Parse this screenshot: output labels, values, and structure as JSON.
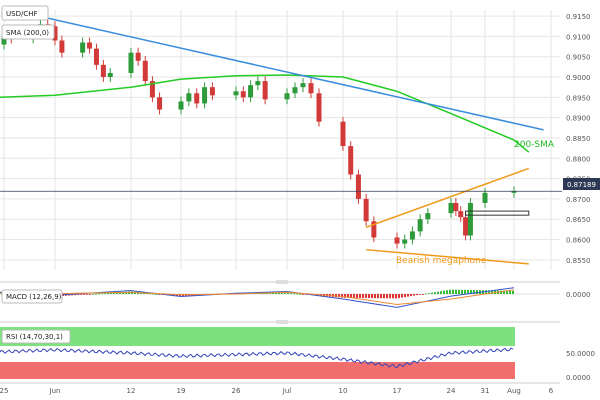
{
  "chart_data": [
    {
      "type": "candlestick",
      "title": "USD/CHF",
      "indicator_label": "SMA (200,0)",
      "yticks": [
        "0.9150",
        "0.9100",
        "0.9050",
        "0.9000",
        "0.8950",
        "0.8900",
        "0.8850",
        "0.8800",
        "0.8750",
        "0.8700",
        "0.8650",
        "0.8600",
        "0.8550"
      ],
      "ylim": [
        0.8525,
        0.9165
      ],
      "xticks": [
        "25",
        "Jun",
        "12",
        "19",
        "26",
        "Jul",
        "10",
        "17",
        "24",
        "31",
        "Aug",
        "6"
      ],
      "current_price": "0.87189",
      "series": [
        {
          "name": "USD/CHF",
          "type": "candlestick",
          "x": [
            "May 24",
            "May 25",
            "May 26",
            "May 29",
            "May 30",
            "May 31",
            "Jun 1",
            "Jun 2",
            "Jun 5",
            "Jun 6",
            "Jun 7",
            "Jun 8",
            "Jun 9",
            "Jun 12",
            "Jun 13",
            "Jun 14",
            "Jun 15",
            "Jun 16",
            "Jun 19",
            "Jun 20",
            "Jun 21",
            "Jun 22",
            "Jun 23",
            "Jun 26",
            "Jun 27",
            "Jun 28",
            "Jun 29",
            "Jun 30",
            "Jul 3",
            "Jul 4",
            "Jul 5",
            "Jul 6",
            "Jul 7",
            "Jul 10",
            "Jul 11",
            "Jul 12",
            "Jul 13",
            "Jul 14",
            "Jul 17",
            "Jul 18",
            "Jul 19",
            "Jul 20",
            "Jul 21",
            "Jul 24",
            "Jul 25",
            "Jul 26",
            "Jul 27",
            "Jul 28",
            "Jul 31",
            "Aug 1"
          ],
          "close": [
            0.908,
            0.9105,
            0.9095,
            0.911,
            0.913,
            0.9125,
            0.909,
            0.906,
            0.9085,
            0.907,
            0.903,
            0.9,
            0.901,
            0.906,
            0.904,
            0.899,
            0.895,
            0.892,
            0.894,
            0.896,
            0.8935,
            0.8975,
            0.8955,
            0.8965,
            0.895,
            0.898,
            0.899,
            0.8945,
            0.896,
            0.8975,
            0.8985,
            0.896,
            0.889,
            0.883,
            0.876,
            0.87,
            0.8645,
            0.8605,
            0.859,
            0.86,
            0.862,
            0.865,
            0.8665,
            0.869,
            0.867,
            0.8655,
            0.861,
            0.869,
            0.8715,
            0.8719
          ]
        },
        {
          "name": "200-SMA",
          "type": "line",
          "x": [
            "May 24",
            "Jun 1",
            "Jun 12",
            "Jun 19",
            "Jun 26",
            "Jul 3",
            "Jul 10",
            "Jul 17",
            "Jul 24",
            "Aug 1",
            "Aug 3"
          ],
          "values": [
            0.895,
            0.8955,
            0.8975,
            0.8995,
            0.9003,
            0.9005,
            0.9,
            0.8965,
            0.891,
            0.8845,
            0.8815
          ]
        }
      ],
      "annotations": [
        {
          "text": "200-SMA",
          "color": "#22bb22"
        },
        {
          "text": "Bearish megaphone",
          "color": "#f09a1a"
        }
      ],
      "trendlines": [
        {
          "name": "descending",
          "color": "#3a8ddd",
          "points": [
            [
              "May 31",
              0.9145
            ],
            [
              "Aug 5",
              0.887
            ]
          ]
        },
        {
          "name": "megaphone-upper",
          "color": "#f09a1a",
          "points": [
            [
              "Jul 13",
              0.863
            ],
            [
              "Aug 3",
              0.8775
            ]
          ]
        },
        {
          "name": "megaphone-lower",
          "color": "#f09a1a",
          "points": [
            [
              "Jul 13",
              0.8575
            ],
            [
              "Aug 3",
              0.854
            ]
          ]
        }
      ],
      "support_zone": [
        0.866,
        0.867
      ]
    },
    {
      "type": "bar",
      "title": "MACD (12,26,9)",
      "yticks": [
        "0.0000"
      ],
      "x": [
        "May 24",
        "Jun 1",
        "Jun 12",
        "Jun 19",
        "Jun 26",
        "Jul 3",
        "Jul 10",
        "Jul 17",
        "Jul 24",
        "Aug 1"
      ],
      "series": [
        {
          "name": "MACD",
          "values": [
            0.0005,
            -0.0003,
            0.0008,
            -0.0006,
            0.0002,
            0.0006,
            -0.0012,
            -0.0032,
            -0.0005,
            0.0015
          ]
        },
        {
          "name": "Signal",
          "values": [
            0.0002,
            0.0001,
            0.0004,
            -0.0002,
            0.0,
            0.0004,
            -0.0006,
            -0.0025,
            -0.0012,
            0.001
          ]
        }
      ]
    },
    {
      "type": "line",
      "title": "RSI (14,70,30,1)",
      "yticks": [
        "50.0000",
        "0.0000"
      ],
      "ylim": [
        0,
        100
      ],
      "overbought": 70,
      "oversold": 30,
      "x": [
        "May 24",
        "Jun 1",
        "Jun 12",
        "Jun 19",
        "Jun 26",
        "Jul 3",
        "Jul 10",
        "Jul 17",
        "Jul 24",
        "Aug 1"
      ],
      "series": [
        {
          "name": "RSI",
          "values": [
            52,
            56,
            50,
            44,
            47,
            50,
            38,
            24,
            50,
            57
          ]
        }
      ]
    }
  ]
}
